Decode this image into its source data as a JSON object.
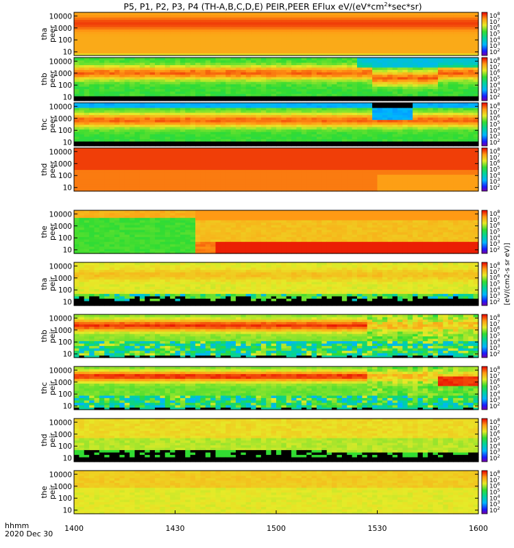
{
  "chart_data": {
    "type": "heatmap",
    "title": "P5, P1, P2, P3, P4 (TH-A,B,C,D,E) PEIR,PEER EFlux eV/(eV*cm^2*sec*sr)",
    "title_parts": {
      "main": "P5, P1, P2, P3, P4 (TH-A,B,C,D,E) PEIR,PEER EFlux eV/(eV*cm",
      "sup": "2",
      "tail": "*sec*sr)"
    },
    "xlabel": "hhmm",
    "date_label": "2020 Dec 30",
    "x_ticks": [
      "1400",
      "1430",
      "1500",
      "1530",
      "1600"
    ],
    "y_ticks": [
      "10",
      "100",
      "1000",
      "10000"
    ],
    "yscale": "log",
    "ylim": [
      5,
      20000
    ],
    "colorbar_ticks": [
      {
        "base": "10",
        "exp": "8"
      },
      {
        "base": "10",
        "exp": "7"
      },
      {
        "base": "10",
        "exp": "6"
      },
      {
        "base": "10",
        "exp": "5"
      },
      {
        "base": "10",
        "exp": "4"
      },
      {
        "base": "10",
        "exp": "3"
      },
      {
        "base": "10",
        "exp": "2"
      }
    ],
    "colorbar_label": "[eV/(cm2-s sr eV)]",
    "panels": [
      {
        "probe": "tha",
        "species": "peer",
        "profile": "tha_peer"
      },
      {
        "probe": "thb",
        "species": "peer",
        "profile": "thb_peer"
      },
      {
        "probe": "thc",
        "species": "peer",
        "profile": "thc_peer"
      },
      {
        "probe": "thd",
        "species": "peer",
        "profile": "thd_peer"
      },
      {
        "probe": "the",
        "species": "peer",
        "profile": "the_peer"
      },
      {
        "probe": "tha",
        "species": "peir",
        "profile": "tha_peir"
      },
      {
        "probe": "thb",
        "species": "peir",
        "profile": "thb_peir"
      },
      {
        "probe": "thc",
        "species": "peir",
        "profile": "thc_peir"
      },
      {
        "probe": "thd",
        "species": "peir",
        "profile": "thd_peir"
      },
      {
        "probe": "the",
        "species": "peir",
        "profile": "the_peir"
      }
    ]
  }
}
